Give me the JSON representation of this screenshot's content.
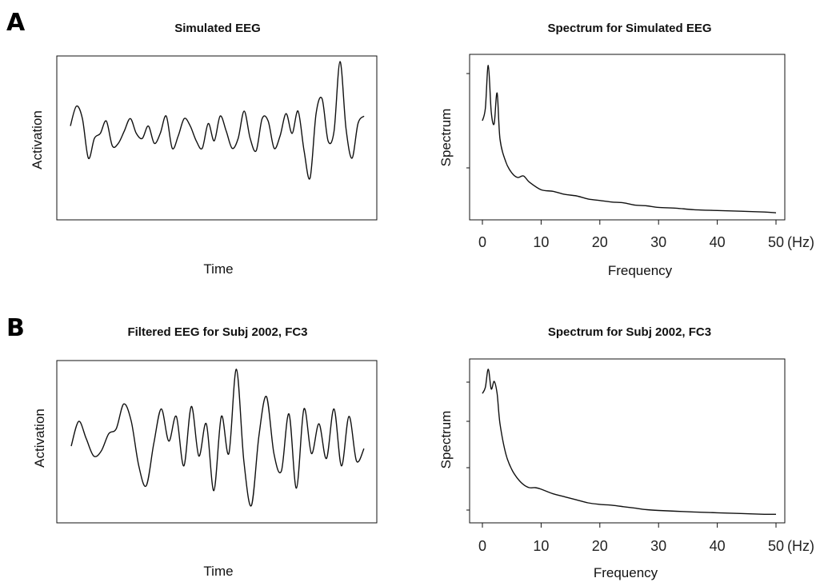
{
  "panels": [
    {
      "letter": "A"
    },
    {
      "letter": "B"
    }
  ],
  "chart_data": [
    {
      "type": "line",
      "title": "Simulated EEG",
      "xlabel": "Time",
      "ylabel": "Activation",
      "grid": false,
      "y": [
        0.2,
        0.6,
        0.35,
        -0.45,
        -0.05,
        0.05,
        0.3,
        -0.2,
        -0.15,
        0.1,
        0.35,
        0.05,
        -0.05,
        0.2,
        -0.15,
        0.05,
        0.4,
        -0.25,
        0.0,
        0.35,
        0.2,
        -0.1,
        -0.25,
        0.25,
        -0.1,
        0.4,
        0.1,
        -0.25,
        -0.05,
        0.5,
        -0.05,
        -0.3,
        0.35,
        0.3,
        -0.25,
        0.0,
        0.45,
        0.05,
        0.5,
        -0.3,
        -0.85,
        0.45,
        0.75,
        -0.1,
        0.1,
        1.5,
        0.15,
        -0.45,
        0.25,
        0.4
      ]
    },
    {
      "type": "line",
      "title": "Spectrum for Simulated EEG",
      "xlabel": "Frequency",
      "ylabel": "Spectrum",
      "x_unit": "(Hz)",
      "x_ticks": [
        0,
        10,
        20,
        30,
        40,
        50
      ],
      "xlim": [
        0,
        50
      ],
      "grid": false,
      "x": [
        0,
        0.5,
        1,
        1.5,
        2,
        2.5,
        3,
        4,
        5,
        6,
        7,
        8,
        10,
        12,
        14,
        16,
        18,
        20,
        22,
        24,
        26,
        28,
        30,
        33,
        36,
        40,
        44,
        48,
        50
      ],
      "y": [
        0.62,
        0.7,
        0.98,
        0.68,
        0.6,
        0.8,
        0.5,
        0.35,
        0.28,
        0.25,
        0.26,
        0.22,
        0.17,
        0.16,
        0.14,
        0.13,
        0.11,
        0.1,
        0.09,
        0.085,
        0.07,
        0.065,
        0.055,
        0.05,
        0.04,
        0.035,
        0.03,
        0.025,
        0.02
      ]
    },
    {
      "type": "line",
      "title": "Filtered EEG for Subj 2002, FC3",
      "xlabel": "Time",
      "ylabel": "Activation",
      "grid": false,
      "y": [
        0.0,
        0.5,
        0.15,
        -0.2,
        -0.1,
        0.25,
        0.35,
        0.85,
        0.5,
        -0.4,
        -0.8,
        0.05,
        0.75,
        0.1,
        0.6,
        -0.4,
        0.8,
        -0.2,
        0.45,
        -0.9,
        0.6,
        -0.15,
        1.55,
        -0.3,
        -1.2,
        0.2,
        1.0,
        -0.15,
        -0.5,
        0.65,
        -0.85,
        0.75,
        -0.15,
        0.45,
        -0.25,
        0.75,
        -0.4,
        0.6,
        -0.3,
        -0.05
      ]
    },
    {
      "type": "line",
      "title": "Spectrum for Subj 2002, FC3",
      "xlabel": "Frequency",
      "ylabel": "Spectrum",
      "x_unit": "(Hz)",
      "x_ticks": [
        0,
        10,
        20,
        30,
        40,
        50
      ],
      "xlim": [
        0,
        50
      ],
      "grid": false,
      "x": [
        0,
        0.5,
        1,
        1.5,
        2,
        2.5,
        3,
        4,
        5,
        6,
        7,
        8,
        9,
        10,
        12,
        14,
        16,
        18,
        20,
        22,
        24,
        26,
        28,
        30,
        33,
        36,
        40,
        44,
        48,
        50
      ],
      "y": [
        0.82,
        0.86,
        0.98,
        0.85,
        0.9,
        0.82,
        0.62,
        0.42,
        0.32,
        0.26,
        0.22,
        0.2,
        0.2,
        0.19,
        0.16,
        0.14,
        0.12,
        0.1,
        0.09,
        0.085,
        0.075,
        0.065,
        0.055,
        0.05,
        0.045,
        0.04,
        0.035,
        0.03,
        0.025,
        0.025
      ]
    }
  ]
}
